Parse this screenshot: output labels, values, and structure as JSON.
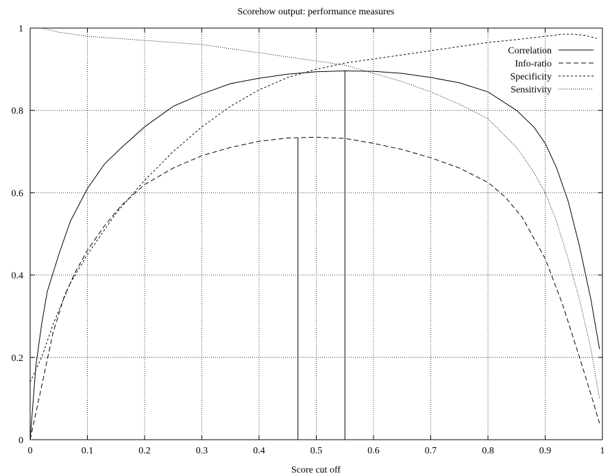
{
  "chart_data": {
    "type": "line",
    "title": "Scorehow output: performance measures",
    "xlabel": "Score cut off",
    "ylabel": "",
    "xlim": [
      0,
      1
    ],
    "ylim": [
      0,
      1
    ],
    "x_ticks": [
      0,
      0.1,
      0.2,
      0.3,
      0.4,
      0.5,
      0.6,
      0.7,
      0.8,
      0.9,
      1
    ],
    "x_tick_labels": [
      "0",
      "0.1",
      "0.2",
      "0.3",
      "0.4",
      "0.5",
      "0.6",
      "0.7",
      "0.8",
      "0.9",
      "1"
    ],
    "y_ticks": [
      0,
      0.2,
      0.4,
      0.6,
      0.8,
      1
    ],
    "y_tick_labels": [
      "0",
      "0.2",
      "0.4",
      "0.6",
      "0.8",
      "1"
    ],
    "grid": true,
    "legend_position": "top-right",
    "series": [
      {
        "name": "Correlation",
        "dash": "solid",
        "x": [
          0,
          0.01,
          0.02,
          0.03,
          0.05,
          0.07,
          0.1,
          0.13,
          0.16,
          0.2,
          0.25,
          0.3,
          0.35,
          0.4,
          0.45,
          0.5,
          0.55,
          0.6,
          0.65,
          0.7,
          0.75,
          0.8,
          0.85,
          0.88,
          0.9,
          0.92,
          0.94,
          0.96,
          0.98,
          0.995
        ],
        "y": [
          0,
          0.18,
          0.28,
          0.36,
          0.45,
          0.53,
          0.61,
          0.67,
          0.71,
          0.76,
          0.81,
          0.84,
          0.865,
          0.878,
          0.888,
          0.894,
          0.896,
          0.895,
          0.89,
          0.88,
          0.867,
          0.845,
          0.8,
          0.76,
          0.72,
          0.66,
          0.58,
          0.47,
          0.34,
          0.22
        ]
      },
      {
        "name": "Info-ratio",
        "dash": "long-dash",
        "x": [
          0,
          0.02,
          0.04,
          0.06,
          0.08,
          0.1,
          0.13,
          0.16,
          0.2,
          0.25,
          0.3,
          0.35,
          0.4,
          0.45,
          0.5,
          0.55,
          0.6,
          0.65,
          0.7,
          0.75,
          0.8,
          0.83,
          0.86,
          0.9,
          0.93,
          0.96,
          0.98,
          0.995
        ],
        "y": [
          0,
          0.13,
          0.26,
          0.35,
          0.41,
          0.46,
          0.52,
          0.57,
          0.62,
          0.66,
          0.69,
          0.71,
          0.725,
          0.733,
          0.735,
          0.732,
          0.72,
          0.705,
          0.685,
          0.66,
          0.625,
          0.59,
          0.54,
          0.44,
          0.33,
          0.2,
          0.11,
          0.04
        ]
      },
      {
        "name": "Specificity",
        "dash": "short-dash",
        "x": [
          0,
          0.02,
          0.04,
          0.07,
          0.1,
          0.15,
          0.2,
          0.25,
          0.3,
          0.35,
          0.4,
          0.45,
          0.5,
          0.55,
          0.6,
          0.65,
          0.7,
          0.75,
          0.8,
          0.85,
          0.9,
          0.93,
          0.95,
          0.97,
          0.99
        ],
        "y": [
          0.14,
          0.2,
          0.28,
          0.38,
          0.45,
          0.55,
          0.63,
          0.7,
          0.76,
          0.81,
          0.85,
          0.88,
          0.9,
          0.915,
          0.925,
          0.935,
          0.945,
          0.955,
          0.965,
          0.972,
          0.98,
          0.985,
          0.985,
          0.982,
          0.975
        ]
      },
      {
        "name": "Sensitivity",
        "dash": "dotted",
        "x": [
          0,
          0.02,
          0.05,
          0.1,
          0.15,
          0.2,
          0.25,
          0.3,
          0.35,
          0.4,
          0.45,
          0.5,
          0.55,
          0.6,
          0.65,
          0.7,
          0.75,
          0.8,
          0.85,
          0.88,
          0.9,
          0.92,
          0.94,
          0.96,
          0.98,
          0.995
        ],
        "y": [
          1,
          1,
          0.99,
          0.98,
          0.975,
          0.97,
          0.965,
          0.96,
          0.95,
          0.94,
          0.93,
          0.92,
          0.91,
          0.89,
          0.87,
          0.845,
          0.815,
          0.78,
          0.71,
          0.65,
          0.6,
          0.53,
          0.44,
          0.34,
          0.22,
          0.1
        ]
      }
    ],
    "vertical_markers": [
      {
        "x": 0.468,
        "y": 0.733
      },
      {
        "x": 0.55,
        "y": 0.895
      }
    ]
  }
}
